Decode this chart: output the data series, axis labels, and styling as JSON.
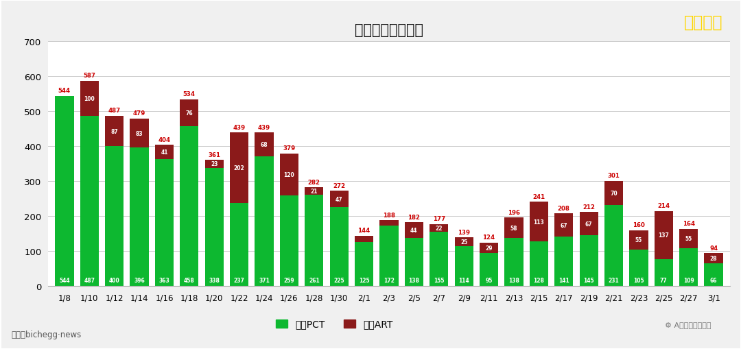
{
  "title": "每日新增输入病例",
  "watermark": "狮城新闻",
  "watermark2": "A计划学习狮城篇",
  "legend_pct": "输入PCT",
  "legend_art": "输入ART",
  "dates": [
    "1/8",
    "1/10",
    "1/12",
    "1/14",
    "1/16",
    "1/18",
    "1/20",
    "1/22",
    "1/24",
    "1/26",
    "1/28",
    "1/30",
    "2/1",
    "2/3",
    "2/5",
    "2/7",
    "2/9",
    "2/11",
    "2/13",
    "2/15",
    "2/17",
    "2/19",
    "2/21",
    "2/23",
    "2/25",
    "2/27",
    "3/1"
  ],
  "pct": [
    544,
    487,
    400,
    396,
    363,
    458,
    338,
    237,
    371,
    259,
    261,
    225,
    125,
    172,
    138,
    155,
    114,
    95,
    138,
    128,
    141,
    145,
    231,
    105,
    77,
    109,
    66
  ],
  "art": [
    0,
    100,
    87,
    83,
    41,
    76,
    23,
    202,
    68,
    120,
    21,
    47,
    19,
    16,
    44,
    22,
    25,
    29,
    58,
    113,
    67,
    67,
    70,
    55,
    137,
    55,
    28
  ],
  "totals": [
    544,
    587,
    487,
    479,
    404,
    534,
    361,
    439,
    439,
    379,
    282,
    272,
    144,
    188,
    182,
    177,
    139,
    124,
    196,
    241,
    208,
    212,
    301,
    160,
    214,
    164,
    94
  ],
  "pct_color": "#0db830",
  "art_color": "#8b1a1a",
  "bg_color": "#f0f0f0",
  "plot_bg_color": "#ffffff",
  "title_color": "#111111",
  "watermark_color": "#ffd700",
  "label_color_red": "#cc0000",
  "ylim_max": 700,
  "yticks": [
    0,
    100,
    200,
    300,
    400,
    500,
    600,
    700
  ],
  "border_color": "#bbbbbb"
}
